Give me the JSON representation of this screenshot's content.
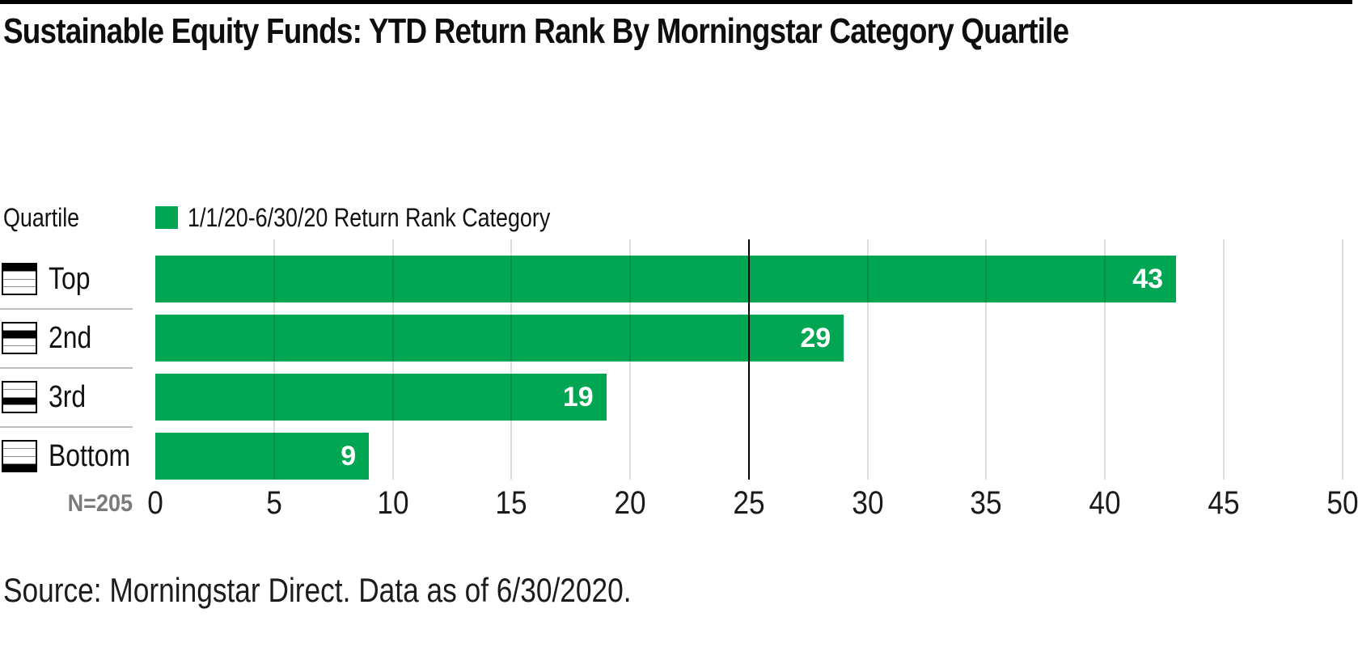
{
  "title": "Sustainable Equity Funds: YTD Return Rank By Morningstar Category Quartile",
  "legend": {
    "axis_label": "Quartile",
    "series_label": "1/1/20-6/30/20 Return Rank Category",
    "swatch_icon": "legend-swatch-square",
    "swatch_color": "#00a651"
  },
  "footer": {
    "n_label": "N=205",
    "source": "Source: Morningstar Direct. Data as of 6/30/2020."
  },
  "colors": {
    "bar_green": "#00a651",
    "value_label": "#ffffff",
    "gridline": "rgba(0,0,0,0.13)",
    "reference_line": "#000000",
    "row_separator": "#bdbdbd",
    "n_label_gray": "#7b7b7b",
    "top_rule": "#000000"
  },
  "chart_data": {
    "type": "bar",
    "orientation": "horizontal",
    "title": "Sustainable Equity Funds: YTD Return Rank By Morningstar Category Quartile",
    "categories": [
      "Top",
      "2nd",
      "3rd",
      "Bottom"
    ],
    "category_axis_label": "Quartile",
    "series": [
      {
        "name": "1/1/20-6/30/20 Return Rank Category",
        "values": [
          43,
          29,
          19,
          9
        ],
        "color": "#00a651"
      }
    ],
    "xlim": [
      0,
      50
    ],
    "xticks": [
      0,
      5,
      10,
      15,
      20,
      25,
      30,
      35,
      40,
      45,
      50
    ],
    "reference_line_x": 25,
    "grid": true,
    "legend_position": "top-left",
    "n_label": "N=205",
    "source_note": "Source: Morningstar Direct. Data as of 6/30/2020."
  }
}
